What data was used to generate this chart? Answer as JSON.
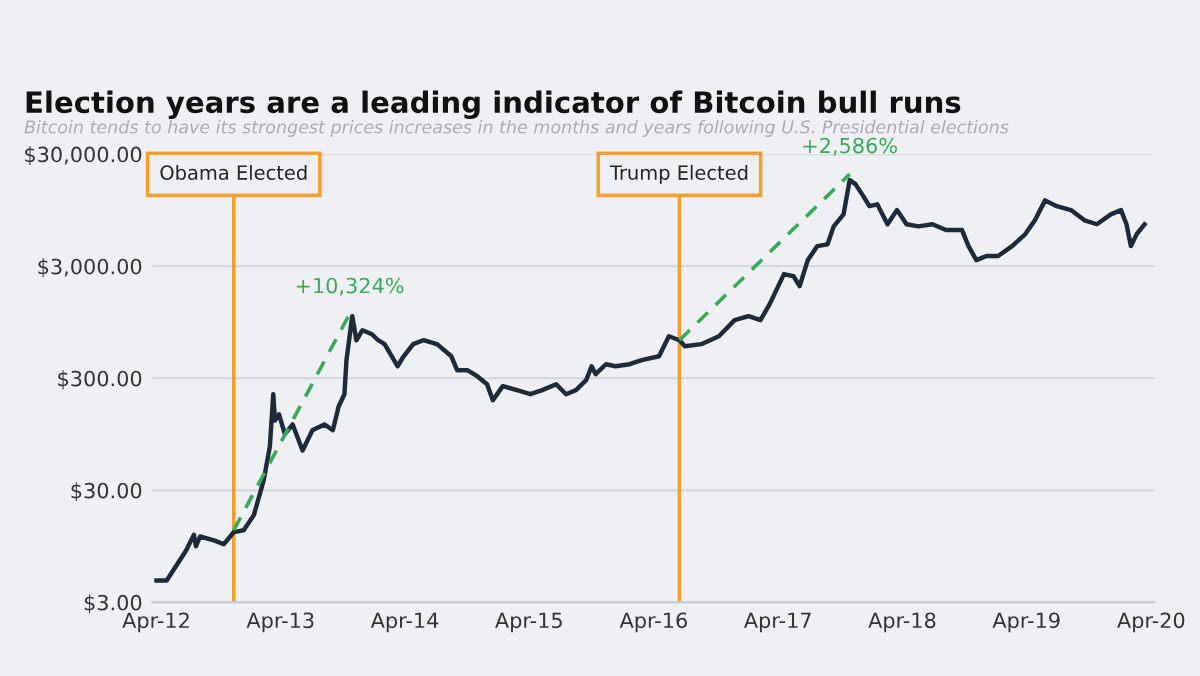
{
  "chart_data": {
    "type": "line",
    "title": "Election years are a leading indicator of Bitcoin bull runs",
    "subtitle": "Bitcoin tends to have its strongest prices increases in the months and years following U.S. Presidential elections",
    "series": [
      {
        "color": "#1e2a3a",
        "line_style": "solid",
        "x": [
          "2012-04-01",
          "2012-05-01",
          "2012-05-28",
          "2012-06-27",
          "2012-07-20",
          "2012-07-26",
          "2012-08-07",
          "2012-09-17",
          "2012-10-16",
          "2012-11-14",
          "2012-12-13",
          "2013-01-12",
          "2013-02-10",
          "2013-02-28",
          "2013-03-10",
          "2013-03-15",
          "2013-03-27",
          "2013-04-13",
          "2013-05-06",
          "2013-06-04",
          "2013-07-03",
          "2013-08-07",
          "2013-09-01",
          "2013-09-18",
          "2013-10-05",
          "2013-10-11",
          "2013-10-28",
          "2013-11-09",
          "2013-11-27",
          "2013-12-25",
          "2014-01-12",
          "2014-01-31",
          "2014-03-10",
          "2014-03-28",
          "2014-04-25",
          "2014-05-25",
          "2014-07-04",
          "2014-08-15",
          "2014-09-01",
          "2014-10-01",
          "2014-10-30",
          "2014-11-28",
          "2014-12-15",
          "2015-01-13",
          "2015-02-24",
          "2015-04-04",
          "2015-05-09",
          "2015-06-19",
          "2015-07-18",
          "2015-08-16",
          "2015-09-15",
          "2015-10-01",
          "2015-10-13",
          "2015-11-12",
          "2015-12-10",
          "2016-01-21",
          "2016-02-25",
          "2016-04-16",
          "2016-05-15",
          "2016-06-15",
          "2016-07-01",
          "2016-08-18",
          "2016-10-09",
          "2016-11-24",
          "2017-01-04",
          "2017-02-08",
          "2017-03-07",
          "2017-04-18",
          "2017-05-16",
          "2017-06-03",
          "2017-06-27",
          "2017-07-25",
          "2017-08-24",
          "2017-09-11",
          "2017-10-10",
          "2017-10-28",
          "2017-11-14",
          "2017-12-07",
          "2017-12-25",
          "2018-01-17",
          "2018-02-16",
          "2018-03-16",
          "2018-04-13",
          "2018-05-18",
          "2018-06-28",
          "2018-08-07",
          "2018-09-23",
          "2018-10-12",
          "2018-11-04",
          "2018-12-04",
          "2019-01-07",
          "2019-02-17",
          "2019-03-28",
          "2019-04-25",
          "2019-05-25",
          "2019-06-28",
          "2019-08-09",
          "2019-09-18",
          "2019-10-24",
          "2019-12-04",
          "2020-01-03",
          "2020-01-19",
          "2020-02-01",
          "2020-02-18",
          "2020-03-12"
        ],
        "values": [
          4.7,
          4.7,
          6.3,
          8.7,
          12,
          9.5,
          11.6,
          10.7,
          9.9,
          12.7,
          13.2,
          18,
          37,
          74,
          216,
          126,
          143,
          95,
          116,
          68,
          103,
          116,
          103,
          168,
          216,
          435,
          1074,
          655,
          805,
          741,
          655,
          604,
          384,
          471,
          604,
          655,
          604,
          471,
          354,
          354,
          313,
          265,
          191,
          255,
          235,
          216,
          235,
          265,
          216,
          235,
          288,
          384,
          326,
          400,
          384,
          400,
          435,
          471,
          711,
          655,
          579,
          604,
          711,
          990,
          1074,
          990,
          1375,
          2550,
          2440,
          1990,
          3400,
          4530,
          4700,
          6800,
          8700,
          17600,
          16200,
          12650,
          10300,
          10700,
          7100,
          9500,
          7100,
          6800,
          7100,
          6300,
          6300,
          4530,
          3400,
          3700,
          3700,
          4530,
          5800,
          7700,
          11600,
          10300,
          9500,
          7700,
          7100,
          8700,
          9500,
          7100,
          4530,
          5800,
          7100
        ]
      },
      {
        "color": "#3aaa5a",
        "line_style": "dashed",
        "x": [
          "2012-11-14",
          "2013-10-20"
        ],
        "values": [
          13.2,
          1120
        ]
      },
      {
        "color": "#3aaa5a",
        "line_style": "dashed",
        "x": [
          "2016-06-15",
          "2017-10-28"
        ],
        "values": [
          655,
          19900
        ]
      }
    ],
    "log": true,
    "xlim": [
      "2012-03-20",
      "2020-04-10"
    ],
    "xticks": [
      {
        "value": "2012-04-01",
        "label": "Apr-12"
      },
      {
        "value": "2013-04-01",
        "label": "Apr-13"
      },
      {
        "value": "2014-04-01",
        "label": "Apr-14"
      },
      {
        "value": "2015-04-01",
        "label": "Apr-15"
      },
      {
        "value": "2016-04-01",
        "label": "Apr-16"
      },
      {
        "value": "2017-04-01",
        "label": "Apr-17"
      },
      {
        "value": "2018-04-01",
        "label": "Apr-18"
      },
      {
        "value": "2019-04-01",
        "label": "Apr-19"
      },
      {
        "value": "2020-04-01",
        "label": "Apr-20"
      }
    ],
    "ylim": [
      3,
      30000
    ],
    "yticks": [
      {
        "value": 3,
        "label": "$3.00"
      },
      {
        "value": 30,
        "label": "$30.00"
      },
      {
        "value": 300,
        "label": "$300.00"
      },
      {
        "value": 3000,
        "label": "$3,000.00"
      },
      {
        "value": 30000,
        "label": "$30,000.00"
      }
    ],
    "grid": "y",
    "ref_lines": [
      {
        "axis": "x",
        "value": "2012-11-14",
        "label": "Obama Elected",
        "color": "#f0a030"
      },
      {
        "axis": "x",
        "value": "2016-06-15",
        "label": "Trump Elected",
        "color": "#f0a030"
      }
    ],
    "annotations": [
      {
        "text": "+10,324%",
        "x": "2013-10-20",
        "y": 1120
      },
      {
        "text": "+2,586%",
        "x": "2017-10-28",
        "y": 19900
      }
    ]
  }
}
